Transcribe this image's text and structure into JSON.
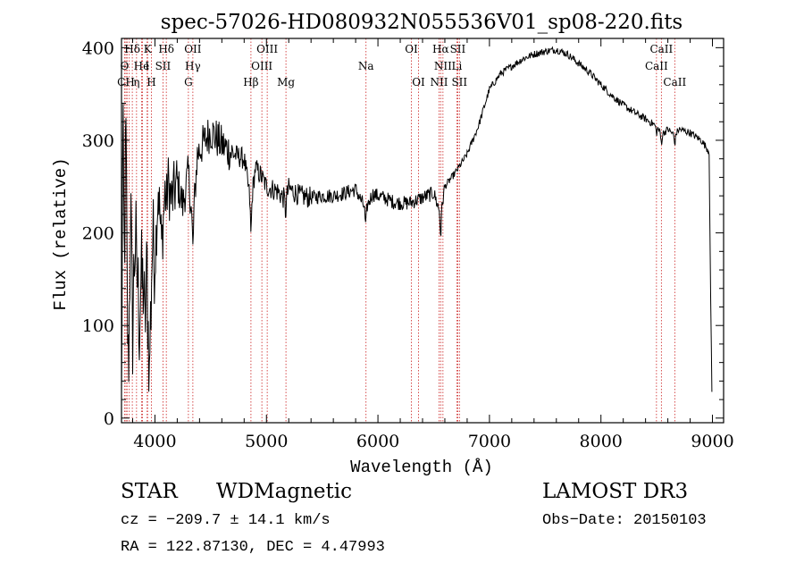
{
  "chart_data": {
    "type": "line",
    "title": "spec-57026-HD080932N055536V01_sp08-220.fits",
    "xlabel": "Wavelength (Å)",
    "ylabel": "Flux (relative)",
    "xlim": [
      3700,
      9100
    ],
    "ylim": [
      -5,
      410
    ],
    "x_ticks": [
      4000,
      5000,
      6000,
      7000,
      8000,
      9000
    ],
    "y_ticks": [
      0,
      100,
      200,
      300,
      400
    ],
    "x_minor_step": 200,
    "y_minor_step": 20,
    "grid": false,
    "line_color": "#000000",
    "marker_color": "#cc2222",
    "spectrum_anchors": [
      [
        3700,
        5
      ],
      [
        3712,
        300
      ],
      [
        3725,
        170
      ],
      [
        3740,
        300
      ],
      [
        3760,
        60
      ],
      [
        3780,
        230
      ],
      [
        3800,
        120
      ],
      [
        3830,
        215
      ],
      [
        3860,
        100
      ],
      [
        3890,
        200
      ],
      [
        3910,
        90
      ],
      [
        3930,
        185
      ],
      [
        3950,
        40
      ],
      [
        3970,
        205
      ],
      [
        4000,
        170
      ],
      [
        4030,
        250
      ],
      [
        4060,
        185
      ],
      [
        4100,
        265
      ],
      [
        4150,
        235
      ],
      [
        4200,
        255
      ],
      [
        4250,
        230
      ],
      [
        4300,
        265
      ],
      [
        4340,
        205
      ],
      [
        4380,
        285
      ],
      [
        4450,
        300
      ],
      [
        4500,
        310
      ],
      [
        4600,
        295
      ],
      [
        4700,
        285
      ],
      [
        4800,
        280
      ],
      [
        4861,
        230
      ],
      [
        4900,
        270
      ],
      [
        4950,
        262
      ],
      [
        5000,
        250
      ],
      [
        5100,
        245
      ],
      [
        5172,
        235
      ],
      [
        5200,
        248
      ],
      [
        5300,
        240
      ],
      [
        5400,
        238
      ],
      [
        5500,
        240
      ],
      [
        5600,
        240
      ],
      [
        5700,
        243
      ],
      [
        5800,
        247
      ],
      [
        5890,
        225
      ],
      [
        5950,
        242
      ],
      [
        6050,
        238
      ],
      [
        6150,
        233
      ],
      [
        6250,
        232
      ],
      [
        6300,
        233
      ],
      [
        6400,
        238
      ],
      [
        6500,
        243
      ],
      [
        6563,
        220
      ],
      [
        6600,
        250
      ],
      [
        6700,
        266
      ],
      [
        6800,
        285
      ],
      [
        6900,
        315
      ],
      [
        7000,
        355
      ],
      [
        7100,
        372
      ],
      [
        7200,
        380
      ],
      [
        7300,
        388
      ],
      [
        7400,
        393
      ],
      [
        7500,
        396
      ],
      [
        7600,
        398
      ],
      [
        7700,
        393
      ],
      [
        7800,
        383
      ],
      [
        7900,
        373
      ],
      [
        8000,
        360
      ],
      [
        8100,
        348
      ],
      [
        8200,
        338
      ],
      [
        8300,
        330
      ],
      [
        8400,
        323
      ],
      [
        8500,
        315
      ],
      [
        8542,
        306
      ],
      [
        8600,
        312
      ],
      [
        8662,
        305
      ],
      [
        8700,
        312
      ],
      [
        8800,
        308
      ],
      [
        8900,
        300
      ],
      [
        8970,
        288
      ],
      [
        8985,
        120
      ],
      [
        8995,
        30
      ]
    ],
    "noise_bands": [
      [
        3700,
        3800,
        70
      ],
      [
        3800,
        4000,
        55
      ],
      [
        4000,
        4200,
        35
      ],
      [
        4200,
        4700,
        22
      ],
      [
        4700,
        5400,
        12
      ],
      [
        5400,
        6600,
        8
      ],
      [
        6600,
        9000,
        4
      ]
    ],
    "dip_lines": [
      [
        3750,
        30
      ],
      [
        3770,
        35
      ],
      [
        3797,
        40
      ],
      [
        3835,
        45
      ],
      [
        3889,
        60
      ],
      [
        3934,
        35
      ],
      [
        3968,
        55
      ],
      [
        4102,
        40
      ],
      [
        4340,
        25
      ],
      [
        4861,
        35
      ],
      [
        5172,
        15
      ],
      [
        5890,
        20
      ],
      [
        6563,
        25
      ],
      [
        8498,
        8
      ],
      [
        8542,
        10
      ],
      [
        8662,
        10
      ]
    ],
    "emission_lines": [
      {
        "label": "Hδ",
        "wavelength": 3797,
        "row": 0
      },
      {
        "label": "K",
        "wavelength": 3934,
        "row": 0
      },
      {
        "label": "Hδ",
        "wavelength": 4102,
        "row": 0
      },
      {
        "label": "OII",
        "wavelength": 4340,
        "row": 0
      },
      {
        "label": "OIII",
        "wavelength": 5007,
        "row": 0
      },
      {
        "label": "OI",
        "wavelength": 6300,
        "row": 0
      },
      {
        "label": "Hα",
        "wavelength": 6563,
        "row": 0
      },
      {
        "label": "SII",
        "wavelength": 6716,
        "row": 0
      },
      {
        "label": "CaII",
        "wavelength": 8542,
        "row": 0
      },
      {
        "label": "O",
        "wavelength": 3727,
        "row": 1
      },
      {
        "label": "He",
        "wavelength": 3880,
        "row": 1
      },
      {
        "label": "I",
        "wavelength": 3930,
        "row": 1
      },
      {
        "label": "SII",
        "wavelength": 4072,
        "row": 1
      },
      {
        "label": "Hγ",
        "wavelength": 4340,
        "row": 1
      },
      {
        "label": "OIII",
        "wavelength": 4959,
        "row": 1
      },
      {
        "label": "Na",
        "wavelength": 5893,
        "row": 1
      },
      {
        "label": "NII",
        "wavelength": 6583,
        "row": 1
      },
      {
        "label": "Li",
        "wavelength": 6708,
        "row": 1
      },
      {
        "label": "CaII",
        "wavelength": 8498,
        "row": 1
      },
      {
        "label": "CH",
        "wavelength": 3740,
        "row": 2
      },
      {
        "label": "η",
        "wavelength": 3835,
        "row": 2
      },
      {
        "label": "H",
        "wavelength": 3968,
        "row": 2
      },
      {
        "label": "G",
        "wavelength": 4300,
        "row": 2
      },
      {
        "label": "Hβ",
        "wavelength": 4861,
        "row": 2
      },
      {
        "label": "Mg",
        "wavelength": 5175,
        "row": 2
      },
      {
        "label": "OI",
        "wavelength": 6364,
        "row": 2
      },
      {
        "label": "NII",
        "wavelength": 6548,
        "row": 2
      },
      {
        "label": "SII",
        "wavelength": 6731,
        "row": 2
      },
      {
        "label": "CaII",
        "wavelength": 8662,
        "row": 2
      }
    ],
    "extra_marker_wavelengths": [
      3750,
      3770,
      3889,
      4300,
      4959,
      6300,
      6716
    ]
  },
  "info": {
    "class": "STAR",
    "subclass": "WDMagnetic",
    "survey": "LAMOST DR3",
    "cz": "cz = −209.7 ± 14.1 km/s",
    "obs_date": "Obs−Date: 20150103",
    "coords": "RA = 122.87130, DEC =   4.47993"
  }
}
